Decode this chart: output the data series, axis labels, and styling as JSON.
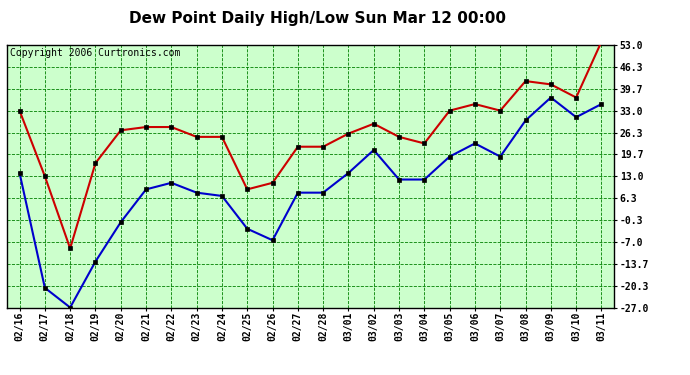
{
  "title": "Dew Point Daily High/Low Sun Mar 12 00:00",
  "copyright": "Copyright 2006 Curtronics.com",
  "dates": [
    "02/16",
    "02/17",
    "02/18",
    "02/19",
    "02/20",
    "02/21",
    "02/22",
    "02/23",
    "02/24",
    "02/25",
    "02/26",
    "02/27",
    "02/28",
    "03/01",
    "03/02",
    "03/03",
    "03/04",
    "03/05",
    "03/06",
    "03/07",
    "03/08",
    "03/09",
    "03/10",
    "03/11"
  ],
  "high": [
    33.0,
    13.0,
    -9.0,
    17.0,
    27.0,
    28.0,
    28.0,
    25.0,
    25.0,
    9.0,
    11.0,
    22.0,
    22.0,
    26.0,
    29.0,
    25.0,
    23.0,
    33.0,
    35.0,
    33.0,
    42.0,
    41.0,
    37.0,
    54.0
  ],
  "low": [
    14.0,
    -21.0,
    -27.0,
    -13.0,
    -1.0,
    9.0,
    11.0,
    8.0,
    7.0,
    -3.0,
    -6.5,
    8.0,
    8.0,
    14.0,
    21.0,
    12.0,
    12.0,
    19.0,
    23.0,
    19.0,
    30.0,
    37.0,
    31.0,
    35.0
  ],
  "high_color": "#cc0000",
  "low_color": "#0000cc",
  "marker_size": 3,
  "ylim_min": -27.0,
  "ylim_max": 53.0,
  "yticks": [
    -27.0,
    -20.3,
    -13.7,
    -7.0,
    -0.3,
    6.3,
    13.0,
    19.7,
    26.3,
    33.0,
    39.7,
    46.3,
    53.0
  ],
  "ytick_labels": [
    "-27.0",
    "-20.3",
    "-13.7",
    "-7.0",
    "-0.3",
    "6.3",
    "13.0",
    "19.7",
    "26.3",
    "33.0",
    "39.7",
    "46.3",
    "53.0"
  ],
  "bg_color": "#ccffcc",
  "grid_color": "green",
  "line_width": 1.5,
  "title_fontsize": 11,
  "tick_fontsize": 7,
  "copyright_fontsize": 7
}
